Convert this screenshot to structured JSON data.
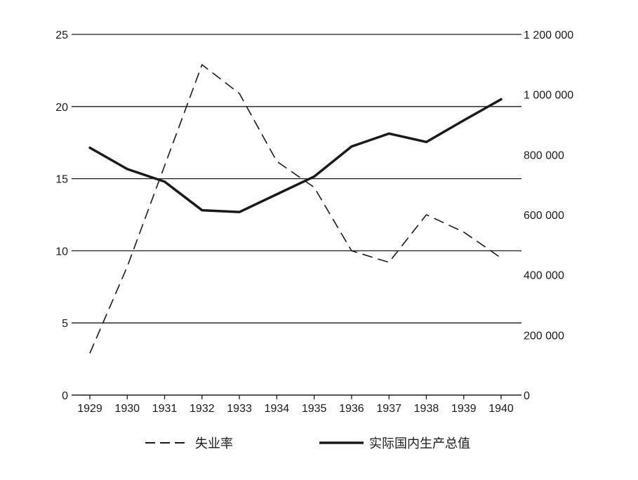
{
  "chart_data": {
    "type": "line",
    "title": "",
    "xlabel": "",
    "categories": [
      "1929",
      "1930",
      "1931",
      "1932",
      "1933",
      "1934",
      "1935",
      "1936",
      "1937",
      "1938",
      "1939",
      "1940"
    ],
    "y_left": {
      "ylim": [
        0,
        25
      ],
      "ticks": [
        0,
        5,
        10,
        15,
        20,
        25
      ],
      "tick_labels": [
        "0",
        "5",
        "10",
        "15",
        "20",
        "25"
      ]
    },
    "y_right": {
      "ylim": [
        0,
        1200000
      ],
      "ticks": [
        0,
        200000,
        400000,
        600000,
        800000,
        1000000,
        1200000
      ],
      "tick_labels": [
        "0",
        "200 000",
        "400 000",
        "600 000",
        "800 000",
        "1 000 000",
        "1 200 000"
      ]
    },
    "grid": "horizontal",
    "legend_position": "bottom",
    "series": [
      {
        "name": "失业率",
        "axis": "left",
        "style": "dashed",
        "color": "#1a1a1a",
        "values": [
          2.9,
          8.9,
          15.9,
          22.9,
          20.9,
          16.2,
          14.4,
          10.0,
          9.2,
          12.5,
          11.3,
          9.5
        ]
      },
      {
        "name": "实际国内生产总值",
        "axis": "right",
        "style": "solid",
        "color": "#1a1a1a",
        "values": [
          823000,
          752000,
          710000,
          615000,
          609000,
          668000,
          727000,
          827000,
          870000,
          842000,
          914000,
          984000
        ]
      }
    ]
  }
}
